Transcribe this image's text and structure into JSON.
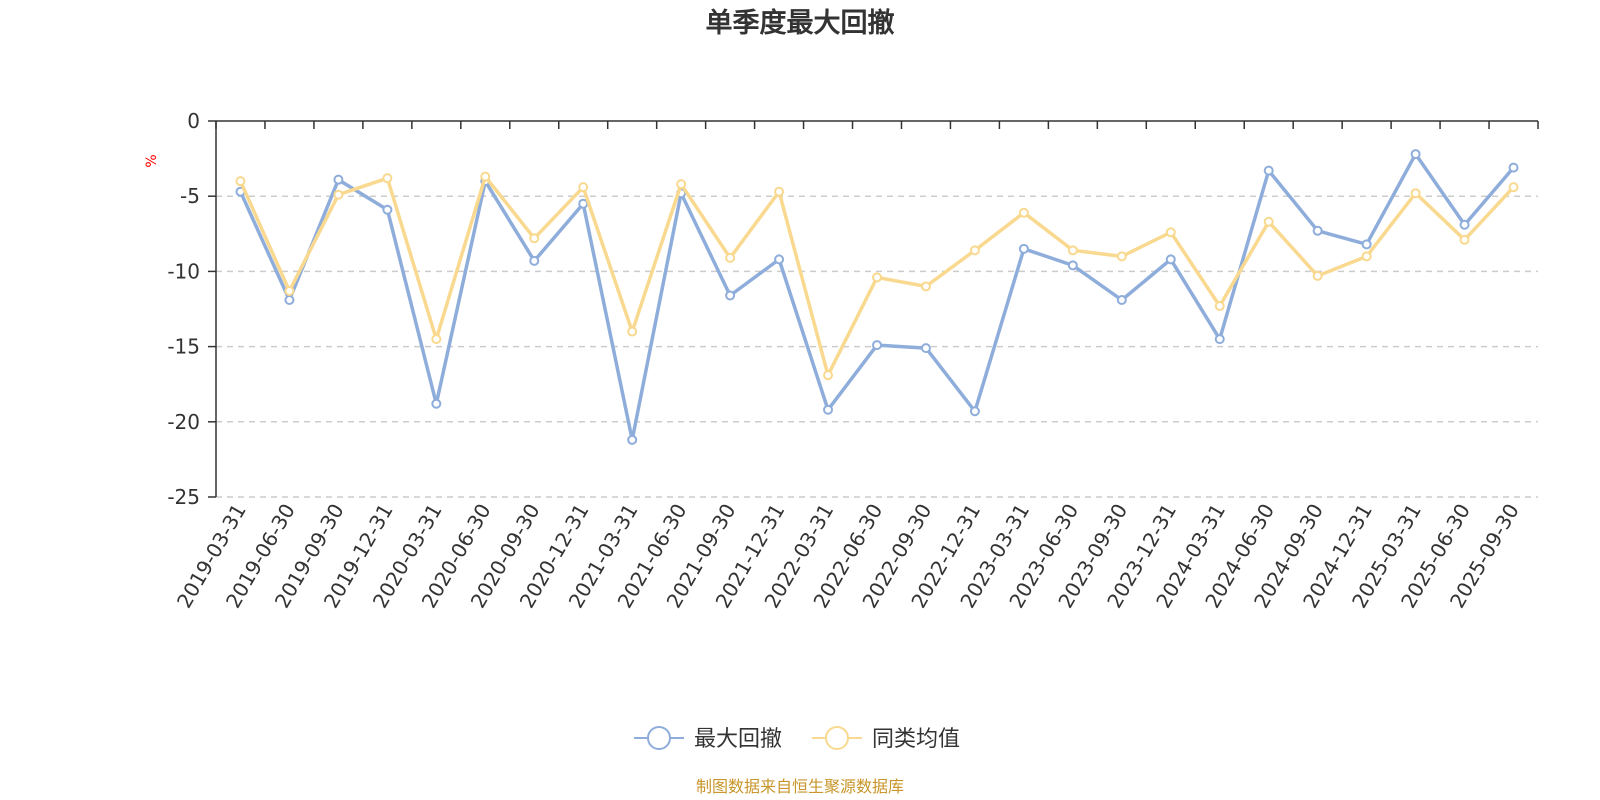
{
  "chart_data": {
    "type": "line",
    "title": "单季度最大回撤",
    "ylabel": "%",
    "ylim": [
      -25,
      0
    ],
    "yticks": [
      0,
      -5,
      -10,
      -15,
      -20,
      -25
    ],
    "grid": true,
    "legend_position": "bottom",
    "categories": [
      "2019-03-31",
      "2019-06-30",
      "2019-09-30",
      "2019-12-31",
      "2020-03-31",
      "2020-06-30",
      "2020-09-30",
      "2020-12-31",
      "2021-03-31",
      "2021-06-30",
      "2021-09-30",
      "2021-12-31",
      "2022-03-31",
      "2022-06-30",
      "2022-09-30",
      "2022-12-31",
      "2023-03-31",
      "2023-06-30",
      "2023-09-30",
      "2023-12-31",
      "2024-03-31",
      "2024-06-30",
      "2024-09-30",
      "2024-12-31",
      "2025-03-31",
      "2025-06-30",
      "2025-09-30"
    ],
    "series": [
      {
        "name": "最大回撤",
        "color": "#8eaddb",
        "values": [
          -4.7,
          -11.9,
          -3.9,
          -5.9,
          -18.8,
          -4.0,
          -9.3,
          -5.5,
          -21.2,
          -4.8,
          -11.6,
          -9.2,
          -19.2,
          -14.9,
          -15.1,
          -19.3,
          -8.5,
          -9.6,
          -11.9,
          -9.2,
          -14.5,
          -3.3,
          -7.3,
          -8.2,
          -2.2,
          -6.9,
          -3.1
        ]
      },
      {
        "name": "同类均值",
        "color": "#f9d98f",
        "values": [
          -4.0,
          -11.3,
          -4.9,
          -3.8,
          -14.5,
          -3.7,
          -7.8,
          -4.4,
          -14.0,
          -4.2,
          -9.1,
          -4.7,
          -16.9,
          -10.4,
          -11.0,
          -8.6,
          -6.1,
          -8.6,
          -9.0,
          -7.4,
          -12.3,
          -6.7,
          -10.3,
          -9.0,
          -4.8,
          -7.9,
          -4.4
        ]
      }
    ]
  },
  "footer": {
    "source": "制图数据来自恒生聚源数据库"
  }
}
